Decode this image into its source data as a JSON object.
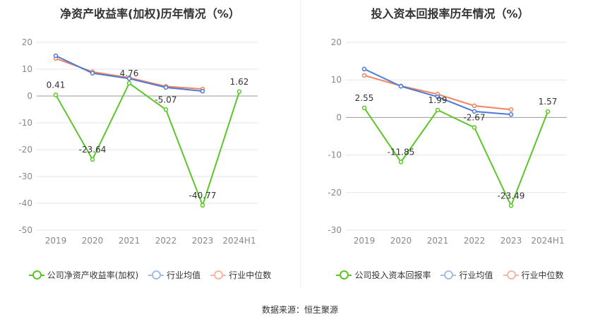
{
  "source_label": "数据来源：恒生聚源",
  "charts": [
    {
      "title": "净资产收益率(加权)历年情况（%）",
      "legend": [
        "公司净资产收益率(加权)",
        "行业均值",
        "行业中位数"
      ]
    },
    {
      "title": "投入资本回报率历年情况（%）",
      "legend": [
        "公司投入资本回报率",
        "行业均值",
        "行业中位数"
      ]
    }
  ],
  "colors": {
    "company": "#5cc628",
    "industry_avg": "#4d79d6",
    "industry_median": "#f0845f",
    "grid": "#e6e6e6",
    "axis_text": "#888888"
  },
  "chart_data": [
    {
      "type": "line",
      "title": "净资产收益率(加权)历年情况（%）",
      "categories": [
        "2019",
        "2020",
        "2021",
        "2022",
        "2023",
        "2024H1"
      ],
      "ylim": [
        -50,
        20
      ],
      "yticks": [
        20,
        10,
        0,
        -10,
        -20,
        -30,
        -40,
        -50
      ],
      "grid": true,
      "legend_position": "bottom",
      "series": [
        {
          "name": "公司净资产收益率(加权)",
          "values": [
            0.41,
            -23.64,
            4.76,
            -5.07,
            -40.77,
            1.62
          ],
          "labels": [
            "0.41",
            "-23.64",
            "4.76",
            "-5.07",
            "-40.77",
            "1.62"
          ]
        },
        {
          "name": "行业均值",
          "values": [
            15.0,
            8.5,
            6.5,
            3.2,
            1.8,
            null
          ]
        },
        {
          "name": "行业中位数",
          "values": [
            14.0,
            9.0,
            6.8,
            3.6,
            2.6,
            null
          ]
        }
      ]
    },
    {
      "type": "line",
      "title": "投入资本回报率历年情况（%）",
      "categories": [
        "2019",
        "2020",
        "2021",
        "2022",
        "2023",
        "2024H1"
      ],
      "ylim": [
        -30,
        20
      ],
      "yticks": [
        20,
        10,
        0,
        -10,
        -20,
        -30
      ],
      "grid": true,
      "legend_position": "bottom",
      "series": [
        {
          "name": "公司投入资本回报率",
          "values": [
            2.55,
            -11.85,
            1.99,
            -2.67,
            -23.49,
            1.57
          ],
          "labels": [
            "2.55",
            "-11.85",
            "1.99",
            "-2.67",
            "-23.49",
            "1.57"
          ]
        },
        {
          "name": "行业均值",
          "values": [
            12.9,
            8.3,
            5.5,
            1.6,
            0.8,
            null
          ]
        },
        {
          "name": "行业中位数",
          "values": [
            11.2,
            8.4,
            6.2,
            3.1,
            2.1,
            null
          ]
        }
      ]
    }
  ]
}
